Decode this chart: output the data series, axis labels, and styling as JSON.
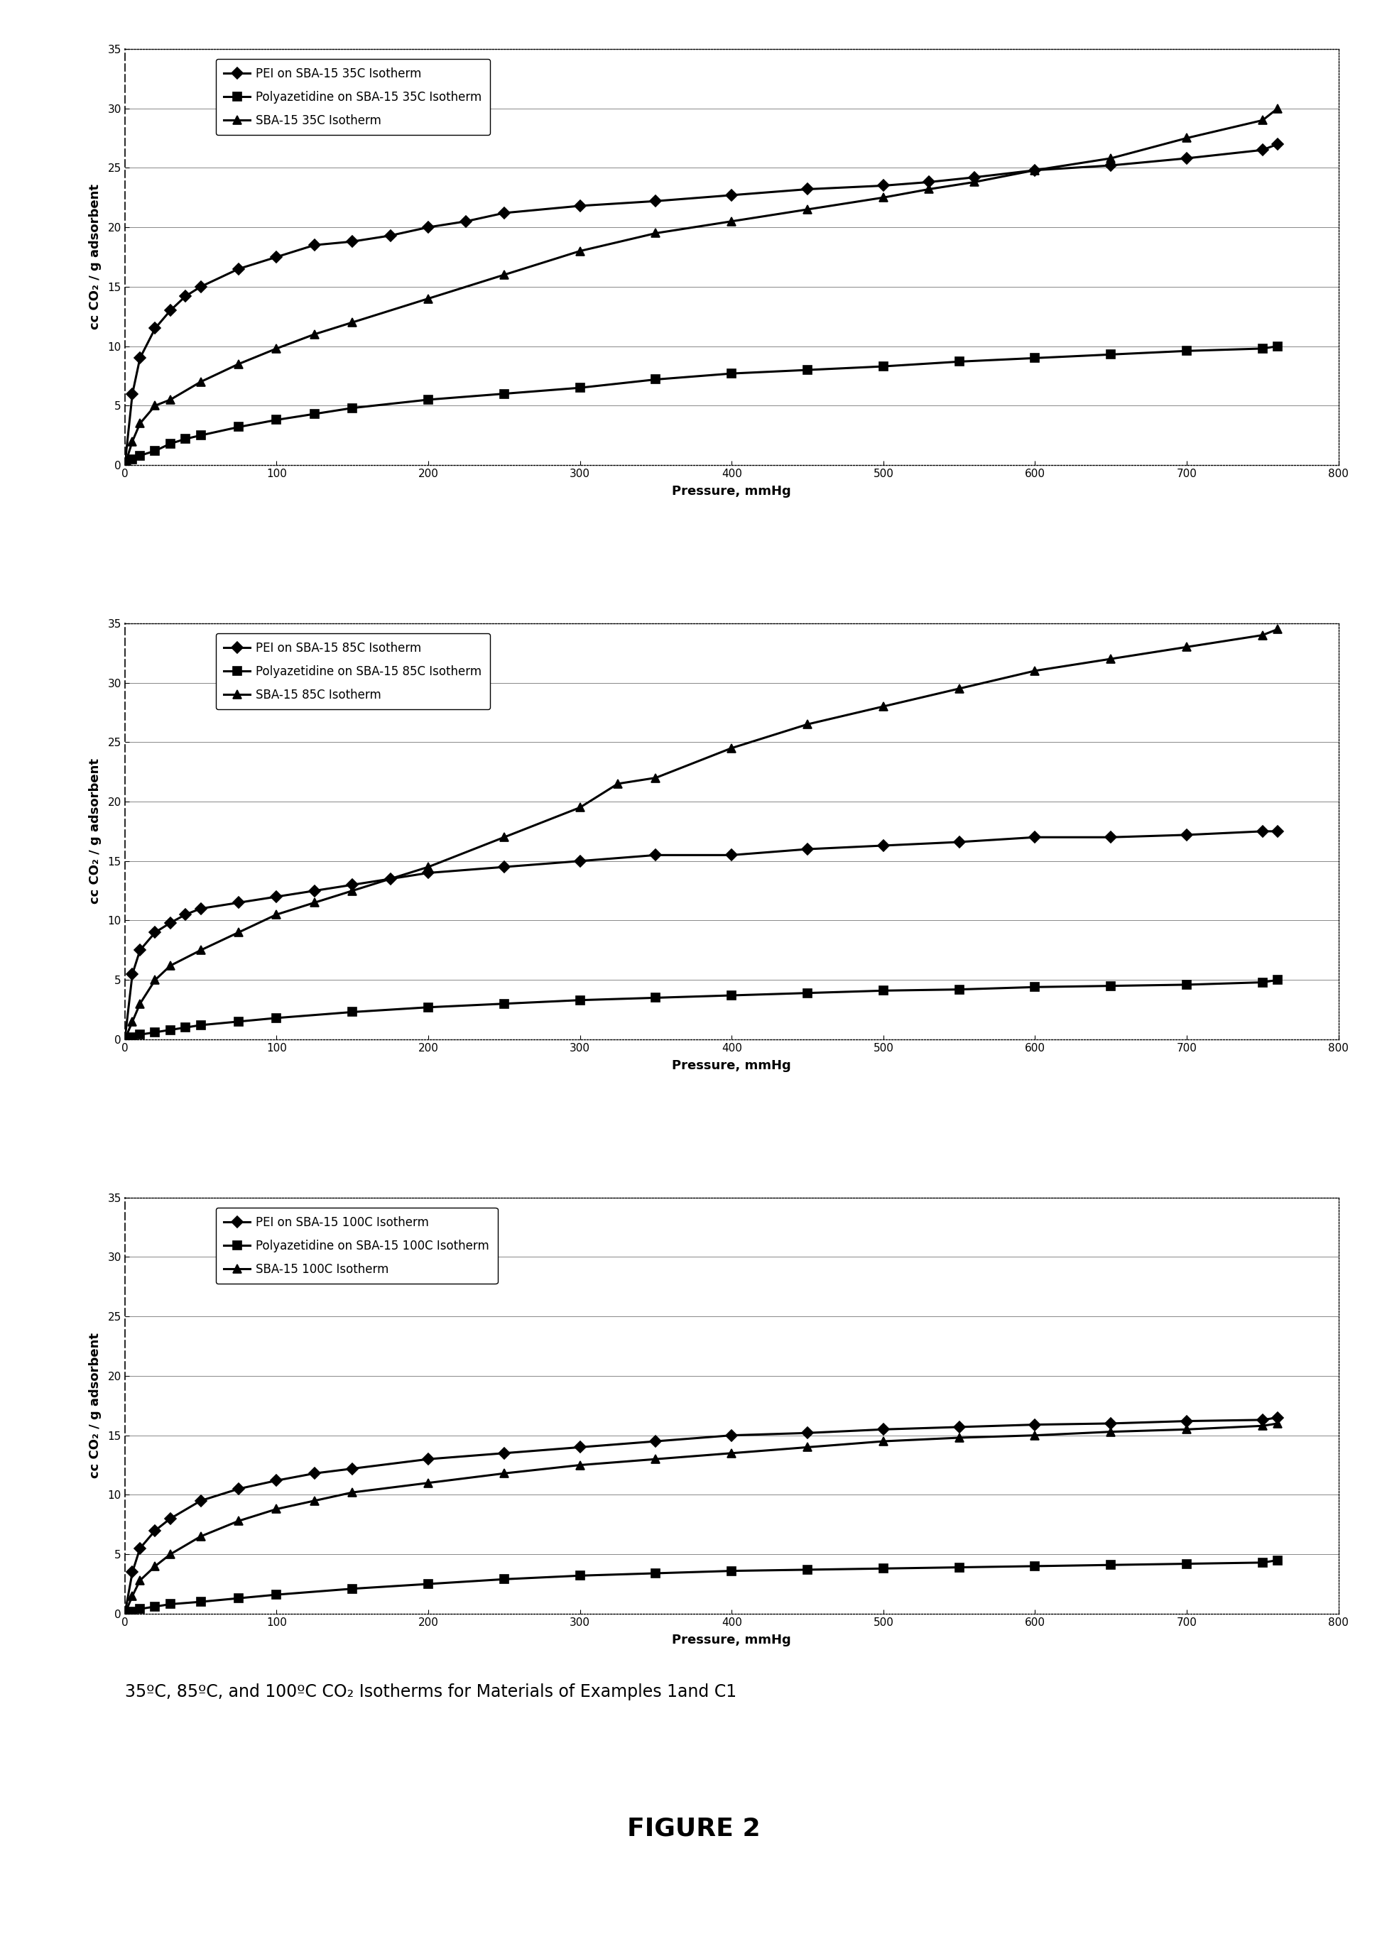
{
  "charts": [
    {
      "xlabel": "Pressure, mmHg",
      "ylabel": "cc CO₂ / g adsorbent",
      "xlim": [
        0,
        800
      ],
      "ylim": [
        0,
        35
      ],
      "yticks": [
        0,
        5,
        10,
        15,
        20,
        25,
        30,
        35
      ],
      "xticks": [
        0,
        100,
        200,
        300,
        400,
        500,
        600,
        700,
        800
      ],
      "series": [
        {
          "label": "PEI on SBA-15 35C Isotherm",
          "marker": "D",
          "x": [
            0,
            5,
            10,
            20,
            30,
            40,
            50,
            75,
            100,
            125,
            150,
            175,
            200,
            225,
            250,
            300,
            350,
            400,
            450,
            500,
            530,
            560,
            600,
            650,
            700,
            750,
            760
          ],
          "y": [
            0,
            6.0,
            9.0,
            11.5,
            13.0,
            14.2,
            15.0,
            16.5,
            17.5,
            18.5,
            18.8,
            19.3,
            20.0,
            20.5,
            21.2,
            21.8,
            22.2,
            22.7,
            23.2,
            23.5,
            23.8,
            24.2,
            24.8,
            25.2,
            25.8,
            26.5,
            27.0
          ]
        },
        {
          "label": "Polyazetidine on SBA-15 35C Isotherm",
          "marker": "s",
          "x": [
            0,
            5,
            10,
            20,
            30,
            40,
            50,
            75,
            100,
            125,
            150,
            200,
            250,
            300,
            350,
            400,
            450,
            500,
            550,
            600,
            650,
            700,
            750,
            760
          ],
          "y": [
            0,
            0.5,
            0.8,
            1.2,
            1.8,
            2.2,
            2.5,
            3.2,
            3.8,
            4.3,
            4.8,
            5.5,
            6.0,
            6.5,
            7.2,
            7.7,
            8.0,
            8.3,
            8.7,
            9.0,
            9.3,
            9.6,
            9.8,
            10.0
          ]
        },
        {
          "label": "SBA-15 35C Isotherm",
          "marker": "^",
          "x": [
            0,
            5,
            10,
            20,
            30,
            50,
            75,
            100,
            125,
            150,
            200,
            250,
            300,
            350,
            400,
            450,
            500,
            530,
            560,
            600,
            650,
            700,
            750,
            760
          ],
          "y": [
            0,
            2.0,
            3.5,
            5.0,
            5.5,
            7.0,
            8.5,
            9.8,
            11.0,
            12.0,
            14.0,
            16.0,
            18.0,
            19.5,
            20.5,
            21.5,
            22.5,
            23.2,
            23.8,
            24.8,
            25.8,
            27.5,
            29.0,
            30.0
          ]
        }
      ]
    },
    {
      "xlabel": "Pressure, mmHg",
      "ylabel": "cc CO₂ / g adsorbent",
      "xlim": [
        0,
        800
      ],
      "ylim": [
        0,
        35
      ],
      "yticks": [
        0,
        5,
        10,
        15,
        20,
        25,
        30,
        35
      ],
      "xticks": [
        0,
        100,
        200,
        300,
        400,
        500,
        600,
        700,
        800
      ],
      "series": [
        {
          "label": "PEI on SBA-15 85C Isotherm",
          "marker": "D",
          "x": [
            0,
            5,
            10,
            20,
            30,
            40,
            50,
            75,
            100,
            125,
            150,
            175,
            200,
            250,
            300,
            350,
            400,
            450,
            500,
            550,
            600,
            650,
            700,
            750,
            760
          ],
          "y": [
            0,
            5.5,
            7.5,
            9.0,
            9.8,
            10.5,
            11.0,
            11.5,
            12.0,
            12.5,
            13.0,
            13.5,
            14.0,
            14.5,
            15.0,
            15.5,
            15.5,
            16.0,
            16.3,
            16.6,
            17.0,
            17.0,
            17.2,
            17.5,
            17.5
          ]
        },
        {
          "label": "Polyazetidine on SBA-15 85C Isotherm",
          "marker": "s",
          "x": [
            0,
            5,
            10,
            20,
            30,
            40,
            50,
            75,
            100,
            150,
            200,
            250,
            300,
            350,
            400,
            450,
            500,
            550,
            600,
            650,
            700,
            750,
            760
          ],
          "y": [
            0,
            0.2,
            0.4,
            0.6,
            0.8,
            1.0,
            1.2,
            1.5,
            1.8,
            2.3,
            2.7,
            3.0,
            3.3,
            3.5,
            3.7,
            3.9,
            4.1,
            4.2,
            4.4,
            4.5,
            4.6,
            4.8,
            5.0
          ]
        },
        {
          "label": "SBA-15 85C Isotherm",
          "marker": "^",
          "x": [
            0,
            5,
            10,
            20,
            30,
            50,
            75,
            100,
            125,
            150,
            200,
            250,
            300,
            325,
            350,
            400,
            450,
            500,
            550,
            600,
            650,
            700,
            750,
            760
          ],
          "y": [
            0,
            1.5,
            3.0,
            5.0,
            6.2,
            7.5,
            9.0,
            10.5,
            11.5,
            12.5,
            14.5,
            17.0,
            19.5,
            21.5,
            22.0,
            24.5,
            26.5,
            28.0,
            29.5,
            31.0,
            32.0,
            33.0,
            34.0,
            34.5
          ]
        }
      ]
    },
    {
      "xlabel": "Pressure, mmHg",
      "ylabel": "cc CO₂ / g adsorbent",
      "xlim": [
        0,
        800
      ],
      "ylim": [
        0,
        35
      ],
      "yticks": [
        0,
        5,
        10,
        15,
        20,
        25,
        30,
        35
      ],
      "xticks": [
        0,
        100,
        200,
        300,
        400,
        500,
        600,
        700,
        800
      ],
      "series": [
        {
          "label": "PEI on SBA-15 100C Isotherm",
          "marker": "D",
          "x": [
            0,
            5,
            10,
            20,
            30,
            50,
            75,
            100,
            125,
            150,
            200,
            250,
            300,
            350,
            400,
            450,
            500,
            550,
            600,
            650,
            700,
            750,
            760
          ],
          "y": [
            0,
            3.5,
            5.5,
            7.0,
            8.0,
            9.5,
            10.5,
            11.2,
            11.8,
            12.2,
            13.0,
            13.5,
            14.0,
            14.5,
            15.0,
            15.2,
            15.5,
            15.7,
            15.9,
            16.0,
            16.2,
            16.3,
            16.5
          ]
        },
        {
          "label": "Polyazetidine on SBA-15 100C Isotherm",
          "marker": "s",
          "x": [
            0,
            5,
            10,
            20,
            30,
            50,
            75,
            100,
            150,
            200,
            250,
            300,
            350,
            400,
            450,
            500,
            550,
            600,
            650,
            700,
            750,
            760
          ],
          "y": [
            0,
            0.2,
            0.4,
            0.6,
            0.8,
            1.0,
            1.3,
            1.6,
            2.1,
            2.5,
            2.9,
            3.2,
            3.4,
            3.6,
            3.7,
            3.8,
            3.9,
            4.0,
            4.1,
            4.2,
            4.3,
            4.5
          ]
        },
        {
          "label": "SBA-15 100C Isotherm",
          "marker": "^",
          "x": [
            0,
            5,
            10,
            20,
            30,
            50,
            75,
            100,
            125,
            150,
            200,
            250,
            300,
            350,
            400,
            450,
            500,
            550,
            600,
            650,
            700,
            750,
            760
          ],
          "y": [
            0,
            1.5,
            2.8,
            4.0,
            5.0,
            6.5,
            7.8,
            8.8,
            9.5,
            10.2,
            11.0,
            11.8,
            12.5,
            13.0,
            13.5,
            14.0,
            14.5,
            14.8,
            15.0,
            15.3,
            15.5,
            15.8,
            16.0
          ]
        }
      ]
    }
  ],
  "caption_line1": "35ºC, 85ºC, and 100ºC CO₂ Isotherms for Materials of Examples 1and C1",
  "caption_line2": "FIGURE 2",
  "line_color": "#000000",
  "background_color": "#ffffff",
  "figure_size": [
    19.53,
    27.55
  ]
}
